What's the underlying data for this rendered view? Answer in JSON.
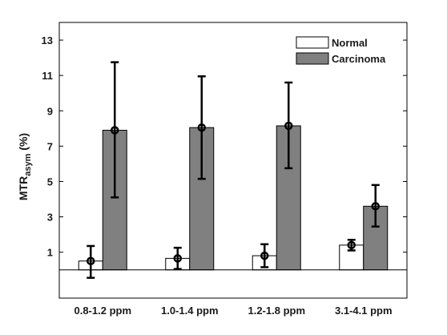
{
  "chart_data": {
    "type": "bar",
    "title": "",
    "xlabel": "",
    "ylabel": {
      "main": "MTR",
      "sub": "asym",
      "unit": " (%)"
    },
    "ylim": [
      -1.6,
      14
    ],
    "yticks": [
      1,
      3,
      5,
      7,
      9,
      11,
      13
    ],
    "baseline": 0,
    "grid": false,
    "legend_position": "top-right",
    "categories": [
      "0.8-1.2 ppm",
      "1.0-1.4 ppm",
      "1.2-1.8 ppm",
      "3.1-4.1 ppm"
    ],
    "series": [
      {
        "name": "Normal",
        "color": "#ffffff",
        "values": [
          0.5,
          0.65,
          0.8,
          1.4
        ],
        "err_low": [
          -0.45,
          0.05,
          0.15,
          1.1
        ],
        "err_high": [
          1.35,
          1.25,
          1.45,
          1.7
        ]
      },
      {
        "name": "Carcinoma",
        "color": "#808080",
        "values": [
          7.9,
          8.05,
          8.15,
          3.6
        ],
        "err_low": [
          4.1,
          5.15,
          5.75,
          2.45
        ],
        "err_high": [
          11.75,
          10.95,
          10.6,
          4.8
        ]
      }
    ]
  }
}
